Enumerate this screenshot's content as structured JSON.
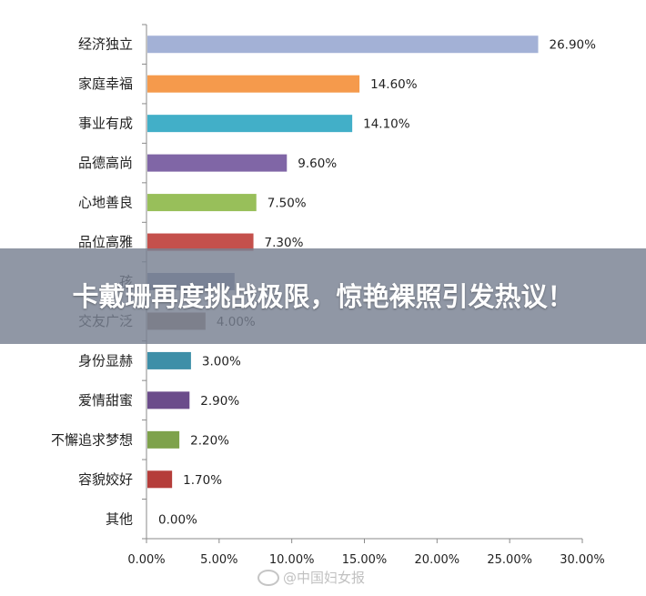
{
  "chart_data": {
    "type": "bar",
    "orientation": "horizontal",
    "categories": [
      "经济独立",
      "家庭幸福",
      "事业有成",
      "品德高尚",
      "心地善良",
      "品位高雅",
      "孩",
      "交友广泛",
      "身份显赫",
      "爱情甜蜜",
      "不懈追求梦想",
      "容貌姣好",
      "其他"
    ],
    "values": [
      26.9,
      14.6,
      14.1,
      9.6,
      7.5,
      7.3,
      6.0,
      4.0,
      3.0,
      2.9,
      2.2,
      1.7,
      0.0
    ],
    "value_labels": [
      "26.90%",
      "14.60%",
      "14.10%",
      "9.60%",
      "7.50%",
      "7.30%",
      "",
      "4.00%",
      "3.00%",
      "2.90%",
      "2.20%",
      "1.70%",
      "0.00%"
    ],
    "colors": [
      "#A3B1D6",
      "#F59A4C",
      "#42AFC8",
      "#8066A6",
      "#98BF5A",
      "#C4504C",
      "#7F8DAE",
      "#957E74",
      "#3E8FA8",
      "#6B4C8B",
      "#7EA24B",
      "#B53D3A",
      "#6E7A96"
    ],
    "xlim": [
      0,
      30
    ],
    "xticks": [
      "0.00%",
      "5.00%",
      "10.00%",
      "15.00%",
      "20.00%",
      "25.00%",
      "30.00%"
    ],
    "title": "",
    "xlabel": "",
    "ylabel": "",
    "grid": false,
    "legend": "none"
  },
  "overlay": {
    "headline": "卡戴珊再度挑战极限，惊艳裸照引发热议！"
  },
  "watermark": {
    "text": "@中国妇女报"
  }
}
